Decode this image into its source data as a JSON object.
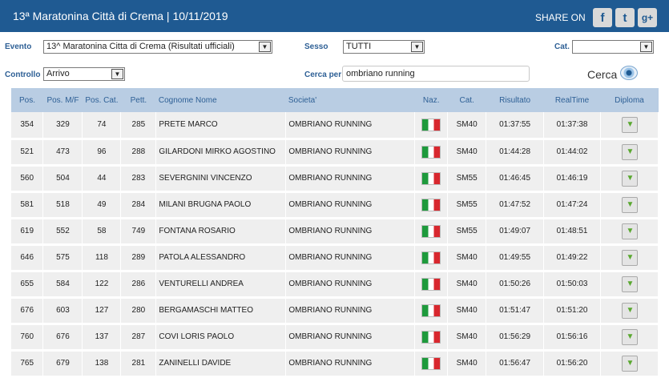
{
  "header": {
    "title": "13ª Maratonina Città di Crema   |  10/11/2019",
    "share_label": "SHARE ON",
    "social": [
      "f",
      "t",
      "g+"
    ]
  },
  "filters": {
    "evento_label": "Evento",
    "evento_value": "13^ Maratonina Citta di Crema (Risultati ufficiali)",
    "sesso_label": "Sesso",
    "sesso_value": "TUTTI",
    "cat_label": "Cat.",
    "cat_value": "",
    "controllo_label": "Controllo",
    "controllo_value": "Arrivo",
    "cerca_per_label": "Cerca per",
    "cerca_per_value": "ombriano running",
    "cerca_button": "Cerca"
  },
  "table": {
    "columns": [
      "Pos.",
      "Pos. M/F",
      "Pos. Cat.",
      "Pett.",
      "Cognome Nome",
      "Societa'",
      "Naz.",
      "Cat.",
      "Risultato",
      "RealTime",
      "Diploma"
    ],
    "rows": [
      [
        "354",
        "329",
        "74",
        "285",
        "PRETE MARCO",
        "OMBRIANO RUNNING",
        "SM40",
        "01:37:55",
        "01:37:38"
      ],
      [
        "521",
        "473",
        "96",
        "288",
        "GILARDONI MIRKO AGOSTINO",
        "OMBRIANO RUNNING",
        "SM40",
        "01:44:28",
        "01:44:02"
      ],
      [
        "560",
        "504",
        "44",
        "283",
        "SEVERGNINI VINCENZO",
        "OMBRIANO RUNNING",
        "SM55",
        "01:46:45",
        "01:46:19"
      ],
      [
        "581",
        "518",
        "49",
        "284",
        "MILANI BRUGNA PAOLO",
        "OMBRIANO RUNNING",
        "SM55",
        "01:47:52",
        "01:47:24"
      ],
      [
        "619",
        "552",
        "58",
        "749",
        "FONTANA ROSARIO",
        "OMBRIANO RUNNING",
        "SM55",
        "01:49:07",
        "01:48:51"
      ],
      [
        "646",
        "575",
        "118",
        "289",
        "PATOLA ALESSANDRO",
        "OMBRIANO RUNNING",
        "SM40",
        "01:49:55",
        "01:49:22"
      ],
      [
        "655",
        "584",
        "122",
        "286",
        "VENTURELLI ANDREA",
        "OMBRIANO RUNNING",
        "SM40",
        "01:50:26",
        "01:50:03"
      ],
      [
        "676",
        "603",
        "127",
        "280",
        "BERGAMASCHI MATTEO",
        "OMBRIANO RUNNING",
        "SM40",
        "01:51:47",
        "01:51:20"
      ],
      [
        "760",
        "676",
        "137",
        "287",
        "COVI LORIS PAOLO",
        "OMBRIANO RUNNING",
        "SM40",
        "01:56:29",
        "01:56:16"
      ],
      [
        "765",
        "679",
        "138",
        "281",
        "ZANINELLI DAVIDE",
        "OMBRIANO RUNNING",
        "SM40",
        "01:56:47",
        "01:56:20"
      ]
    ]
  }
}
